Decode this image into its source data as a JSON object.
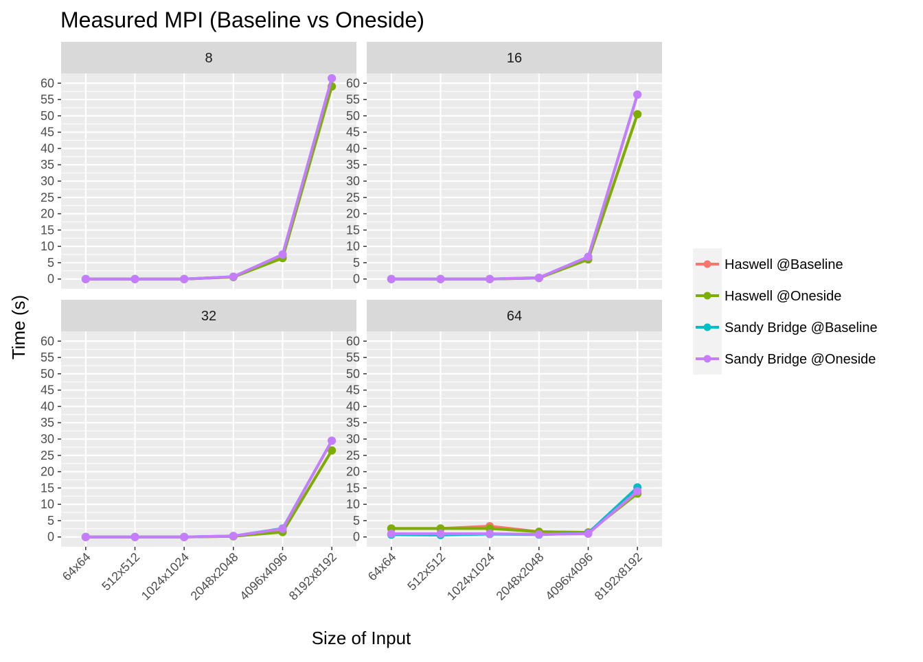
{
  "chart_data": {
    "type": "line",
    "title": "Measured MPI (Baseline vs Oneside)",
    "xlabel": "Size of Input",
    "ylabel": "Time (s)",
    "categories": [
      "64x64",
      "512x512",
      "1024x1024",
      "2048x2048",
      "4096x4096",
      "8192x8192"
    ],
    "ylim": [
      -3,
      63
    ],
    "yticks": [
      0,
      5,
      10,
      15,
      20,
      25,
      30,
      35,
      40,
      45,
      50,
      55,
      60
    ],
    "grid": true,
    "legend_position": "right",
    "series_colors": {
      "Haswell @Baseline": "#F8766D",
      "Haswell @Oneside": "#7CAE00",
      "Sandy Bridge @Baseline": "#00BFC4",
      "Sandy Bridge @Oneside": "#C77CFF"
    },
    "panels": [
      {
        "label": "8",
        "series": [
          {
            "name": "Haswell @Baseline",
            "values": [
              0.0,
              0.0,
              0.0,
              0.6,
              6.6,
              59.0
            ]
          },
          {
            "name": "Haswell @Oneside",
            "values": [
              0.0,
              0.0,
              0.0,
              0.6,
              6.4,
              59.0
            ]
          },
          {
            "name": "Sandy Bridge @Baseline",
            "values": [
              0.0,
              0.0,
              0.0,
              0.7,
              7.5,
              61.5
            ]
          },
          {
            "name": "Sandy Bridge @Oneside",
            "values": [
              0.0,
              0.0,
              0.0,
              0.7,
              7.5,
              61.5
            ]
          }
        ]
      },
      {
        "label": "16",
        "series": [
          {
            "name": "Haswell @Baseline",
            "values": [
              0.0,
              0.0,
              0.0,
              0.3,
              6.0,
              50.5
            ]
          },
          {
            "name": "Haswell @Oneside",
            "values": [
              0.0,
              0.0,
              0.0,
              0.3,
              6.0,
              50.5
            ]
          },
          {
            "name": "Sandy Bridge @Baseline",
            "values": [
              0.0,
              0.0,
              0.0,
              0.4,
              6.8,
              56.5
            ]
          },
          {
            "name": "Sandy Bridge @Oneside",
            "values": [
              0.0,
              0.0,
              0.0,
              0.4,
              6.8,
              56.5
            ]
          }
        ]
      },
      {
        "label": "32",
        "series": [
          {
            "name": "Haswell @Baseline",
            "values": [
              0.0,
              0.0,
              0.0,
              0.2,
              1.6,
              26.5
            ]
          },
          {
            "name": "Haswell @Oneside",
            "values": [
              0.0,
              0.0,
              0.0,
              0.2,
              1.5,
              26.5
            ]
          },
          {
            "name": "Sandy Bridge @Baseline",
            "values": [
              0.0,
              0.0,
              0.0,
              0.3,
              2.6,
              29.5
            ]
          },
          {
            "name": "Sandy Bridge @Oneside",
            "values": [
              0.0,
              0.0,
              0.0,
              0.3,
              2.5,
              29.5
            ]
          }
        ]
      },
      {
        "label": "64",
        "series": [
          {
            "name": "Haswell @Baseline",
            "values": [
              2.6,
              2.6,
              3.3,
              1.6,
              1.4,
              13.3
            ]
          },
          {
            "name": "Haswell @Oneside",
            "values": [
              2.6,
              2.6,
              2.6,
              1.6,
              1.4,
              13.3
            ]
          },
          {
            "name": "Sandy Bridge @Baseline",
            "values": [
              0.7,
              0.6,
              0.9,
              0.7,
              1.2,
              15.2
            ]
          },
          {
            "name": "Sandy Bridge @Oneside",
            "values": [
              1.0,
              1.0,
              1.0,
              0.8,
              1.0,
              14.0
            ]
          }
        ]
      }
    ]
  }
}
